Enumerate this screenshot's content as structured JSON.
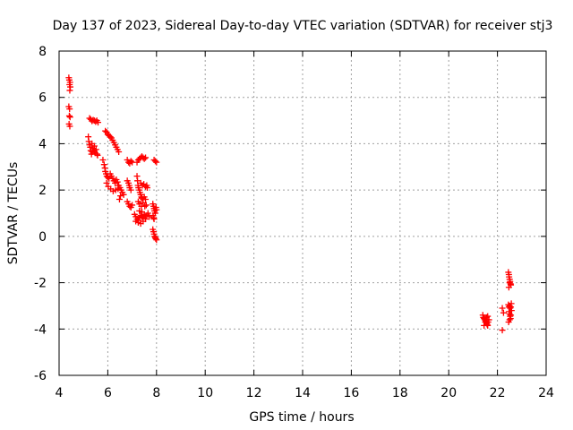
{
  "chart_data": {
    "type": "scatter",
    "title": "Day 137 of 2023, Sidereal Day-to-day VTEC variation (SDTVAR) for receiver stj3",
    "xlabel": "GPS time / hours",
    "ylabel": "SDTVAR / TECUs",
    "xlim": [
      4,
      24
    ],
    "ylim": [
      -6,
      8
    ],
    "x_ticks": [
      4,
      6,
      8,
      10,
      12,
      14,
      16,
      18,
      20,
      22,
      24
    ],
    "y_ticks": [
      -6,
      -4,
      -2,
      0,
      2,
      4,
      6,
      8
    ],
    "grid": true,
    "legend": "none",
    "marker": "+",
    "series": [
      {
        "name": "SDTVAR",
        "color": "#ff0000",
        "points": [
          [
            4.4,
            6.85
          ],
          [
            4.42,
            6.75
          ],
          [
            4.45,
            6.65
          ],
          [
            4.43,
            6.55
          ],
          [
            4.46,
            6.45
          ],
          [
            4.44,
            6.3
          ],
          [
            4.4,
            5.6
          ],
          [
            4.43,
            5.5
          ],
          [
            4.42,
            5.2
          ],
          [
            4.45,
            5.15
          ],
          [
            4.41,
            4.85
          ],
          [
            4.44,
            4.75
          ],
          [
            5.25,
            5.1
          ],
          [
            5.3,
            5.05
          ],
          [
            5.35,
            4.98
          ],
          [
            5.4,
            5.02
          ],
          [
            5.45,
            5.0
          ],
          [
            5.5,
            4.95
          ],
          [
            5.55,
            5.0
          ],
          [
            5.6,
            4.92
          ],
          [
            5.2,
            4.3
          ],
          [
            5.22,
            4.1
          ],
          [
            5.25,
            3.95
          ],
          [
            5.28,
            3.85
          ],
          [
            5.3,
            3.7
          ],
          [
            5.33,
            3.55
          ],
          [
            5.36,
            3.65
          ],
          [
            5.4,
            3.8
          ],
          [
            5.44,
            3.7
          ],
          [
            5.48,
            3.6
          ],
          [
            5.52,
            3.75
          ],
          [
            5.56,
            3.55
          ],
          [
            5.58,
            3.5
          ],
          [
            5.35,
            4.0
          ],
          [
            5.45,
            3.9
          ],
          [
            5.9,
            4.55
          ],
          [
            5.95,
            4.5
          ],
          [
            6.0,
            4.4
          ],
          [
            6.05,
            4.35
          ],
          [
            6.1,
            4.3
          ],
          [
            6.15,
            4.25
          ],
          [
            6.2,
            4.15
          ],
          [
            6.25,
            4.05
          ],
          [
            6.3,
            3.95
          ],
          [
            6.35,
            3.85
          ],
          [
            6.4,
            3.75
          ],
          [
            6.45,
            3.65
          ],
          [
            5.8,
            3.3
          ],
          [
            5.85,
            3.1
          ],
          [
            5.88,
            2.95
          ],
          [
            5.9,
            2.8
          ],
          [
            5.93,
            2.7
          ],
          [
            5.96,
            2.6
          ],
          [
            6.0,
            2.55
          ],
          [
            6.05,
            2.5
          ],
          [
            6.1,
            2.7
          ],
          [
            6.15,
            2.6
          ],
          [
            6.2,
            2.5
          ],
          [
            6.25,
            2.4
          ],
          [
            6.3,
            2.3
          ],
          [
            6.35,
            2.45
          ],
          [
            6.4,
            2.35
          ],
          [
            6.45,
            2.2
          ],
          [
            6.5,
            2.1
          ],
          [
            6.55,
            2.0
          ],
          [
            6.6,
            1.9
          ],
          [
            6.65,
            1.8
          ],
          [
            5.95,
            2.3
          ],
          [
            6.02,
            2.15
          ],
          [
            6.12,
            2.05
          ],
          [
            6.22,
            1.95
          ],
          [
            6.32,
            2.0
          ],
          [
            6.42,
            2.05
          ],
          [
            6.52,
            1.75
          ],
          [
            6.48,
            1.6
          ],
          [
            6.8,
            3.3
          ],
          [
            6.85,
            3.2
          ],
          [
            6.9,
            3.15
          ],
          [
            6.95,
            3.25
          ],
          [
            7.0,
            3.2
          ],
          [
            6.8,
            2.4
          ],
          [
            6.85,
            2.3
          ],
          [
            6.88,
            2.2
          ],
          [
            6.9,
            2.1
          ],
          [
            6.95,
            2.0
          ],
          [
            6.8,
            1.5
          ],
          [
            6.85,
            1.4
          ],
          [
            6.9,
            1.3
          ],
          [
            6.95,
            1.25
          ],
          [
            7.0,
            1.35
          ],
          [
            7.2,
            3.2
          ],
          [
            7.25,
            3.3
          ],
          [
            7.3,
            3.35
          ],
          [
            7.35,
            3.4
          ],
          [
            7.4,
            3.45
          ],
          [
            7.45,
            3.4
          ],
          [
            7.5,
            3.35
          ],
          [
            7.55,
            3.4
          ],
          [
            7.2,
            2.6
          ],
          [
            7.22,
            2.4
          ],
          [
            7.24,
            2.2
          ],
          [
            7.26,
            2.1
          ],
          [
            7.3,
            2.0
          ],
          [
            7.32,
            1.9
          ],
          [
            7.35,
            1.8
          ],
          [
            7.38,
            1.7
          ],
          [
            7.4,
            1.65
          ],
          [
            7.45,
            1.6
          ],
          [
            7.5,
            1.7
          ],
          [
            7.55,
            1.6
          ],
          [
            7.35,
            2.3
          ],
          [
            7.42,
            2.2
          ],
          [
            7.48,
            2.25
          ],
          [
            7.55,
            2.15
          ],
          [
            7.6,
            2.2
          ],
          [
            7.62,
            2.1
          ],
          [
            7.25,
            1.5
          ],
          [
            7.3,
            1.4
          ],
          [
            7.38,
            1.3
          ],
          [
            7.45,
            1.45
          ],
          [
            7.52,
            1.3
          ],
          [
            7.58,
            1.35
          ],
          [
            7.1,
            0.95
          ],
          [
            7.15,
            0.85
          ],
          [
            7.2,
            0.75
          ],
          [
            7.25,
            0.7
          ],
          [
            7.3,
            0.8
          ],
          [
            7.35,
            0.9
          ],
          [
            7.4,
            0.85
          ],
          [
            7.45,
            0.8
          ],
          [
            7.5,
            0.95
          ],
          [
            7.55,
            0.75
          ],
          [
            7.6,
            0.9
          ],
          [
            7.65,
            1.0
          ],
          [
            7.7,
            0.85
          ],
          [
            7.15,
            0.65
          ],
          [
            7.25,
            0.6
          ],
          [
            7.35,
            0.55
          ],
          [
            7.45,
            0.65
          ],
          [
            7.3,
            1.1
          ],
          [
            7.4,
            1.05
          ],
          [
            7.9,
            3.3
          ],
          [
            7.95,
            3.25
          ],
          [
            8.0,
            3.2
          ],
          [
            7.85,
            1.4
          ],
          [
            7.88,
            1.3
          ],
          [
            7.9,
            1.2
          ],
          [
            7.92,
            1.1
          ],
          [
            7.95,
            1.0
          ],
          [
            7.98,
            1.25
          ],
          [
            8.0,
            1.15
          ],
          [
            7.86,
            0.9
          ],
          [
            7.88,
            0.8
          ],
          [
            7.9,
            0.75
          ],
          [
            7.85,
            0.3
          ],
          [
            7.88,
            0.2
          ],
          [
            7.9,
            0.1
          ],
          [
            7.92,
            0.0
          ],
          [
            7.95,
            -0.05
          ],
          [
            7.97,
            -0.1
          ],
          [
            8.0,
            -0.15
          ],
          [
            21.4,
            -3.4
          ],
          [
            21.42,
            -3.5
          ],
          [
            21.45,
            -3.55
          ],
          [
            21.48,
            -3.6
          ],
          [
            21.5,
            -3.7
          ],
          [
            21.52,
            -3.65
          ],
          [
            21.55,
            -3.75
          ],
          [
            21.58,
            -3.8
          ],
          [
            21.6,
            -3.85
          ],
          [
            21.62,
            -3.7
          ],
          [
            21.65,
            -3.6
          ],
          [
            21.45,
            -3.85
          ],
          [
            21.55,
            -3.5
          ],
          [
            21.6,
            -3.45
          ],
          [
            22.2,
            -3.1
          ],
          [
            22.25,
            -3.3
          ],
          [
            22.2,
            -4.05
          ],
          [
            22.45,
            -1.55
          ],
          [
            22.47,
            -1.65
          ],
          [
            22.48,
            -1.75
          ],
          [
            22.5,
            -1.85
          ],
          [
            22.52,
            -1.95
          ],
          [
            22.54,
            -2.05
          ],
          [
            22.55,
            -2.1
          ],
          [
            22.47,
            -2.2
          ],
          [
            22.5,
            -2.0
          ],
          [
            22.45,
            -2.95
          ],
          [
            22.47,
            -3.05
          ],
          [
            22.5,
            -3.0
          ],
          [
            22.52,
            -3.1
          ],
          [
            22.55,
            -3.05
          ],
          [
            22.57,
            -2.9
          ],
          [
            22.48,
            -3.25
          ],
          [
            22.5,
            -3.35
          ],
          [
            22.52,
            -3.45
          ],
          [
            22.54,
            -3.55
          ],
          [
            22.5,
            -3.6
          ],
          [
            22.46,
            -3.7
          ],
          [
            22.55,
            -3.4
          ],
          [
            22.58,
            -3.2
          ]
        ]
      }
    ]
  }
}
